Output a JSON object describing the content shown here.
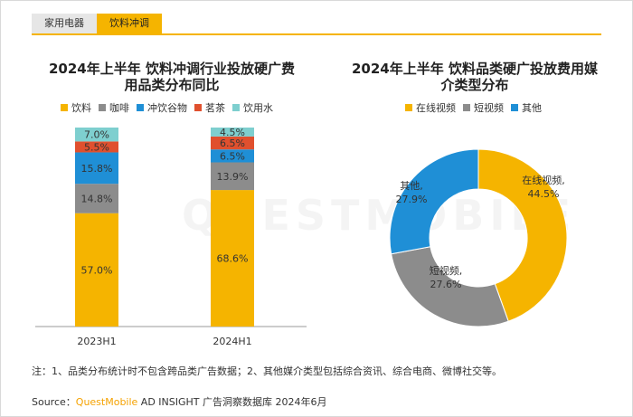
{
  "tabs": [
    {
      "label": "家用电器",
      "active": false
    },
    {
      "label": "饮料冲调",
      "active": true
    }
  ],
  "watermark": "QUESTMOBILE",
  "colors": {
    "饮料": "#f5b400",
    "咖啡": "#8c8c8c",
    "冲饮谷物": "#1f8fd6",
    "茗茶": "#e0502e",
    "饮用水": "#7ecfcf",
    "在线视频": "#f5b400",
    "短视频": "#8c8c8c",
    "其他": "#1f8fd6"
  },
  "left_chart": {
    "title_line1": "2024年上半年 饮料冲调行业投放硬广费",
    "title_line2": "用品类分布同比"
  },
  "right_chart": {
    "title_line1": "2024年上半年 饮料品类硬广投放费用媒",
    "title_line2": "介类型分布"
  },
  "chart_data": [
    {
      "type": "bar",
      "stacked": true,
      "categories": [
        "2023H1",
        "2024H1"
      ],
      "series": [
        {
          "name": "饮料",
          "values": [
            57.0,
            68.6
          ],
          "labels": [
            "57.0%",
            "68.6%"
          ]
        },
        {
          "name": "咖啡",
          "values": [
            14.8,
            13.9
          ],
          "labels": [
            "14.8%",
            "13.9%"
          ]
        },
        {
          "name": "冲饮谷物",
          "values": [
            15.8,
            6.5
          ],
          "labels": [
            "15.8%",
            "6.5%"
          ]
        },
        {
          "name": "茗茶",
          "values": [
            5.5,
            6.5
          ],
          "labels": [
            "5.5%",
            "6.5%"
          ]
        },
        {
          "name": "饮用水",
          "values": [
            7.0,
            4.5
          ],
          "labels": [
            "7.0%",
            "4.5%"
          ]
        }
      ],
      "ylim": [
        0,
        100
      ],
      "legend": "top"
    },
    {
      "type": "pie",
      "donut": true,
      "slices": [
        {
          "name": "在线视频",
          "value": 44.5,
          "label": "在线视频,",
          "pct": "44.5%"
        },
        {
          "name": "短视频",
          "value": 27.6,
          "label": "短视频,",
          "pct": "27.6%"
        },
        {
          "name": "其他",
          "value": 27.9,
          "label": "其他,",
          "pct": "27.9%"
        }
      ],
      "legend": "top"
    }
  ],
  "note": "注：1、品类分布统计时不包含跨品类广告数据；2、其他媒介类型包括综合资讯、综合电商、微博社交等。",
  "source": {
    "prefix": "Source：",
    "brand": "QuestMobile",
    "rest": " AD INSIGHT 广告洞察数据库 2024年6月"
  }
}
